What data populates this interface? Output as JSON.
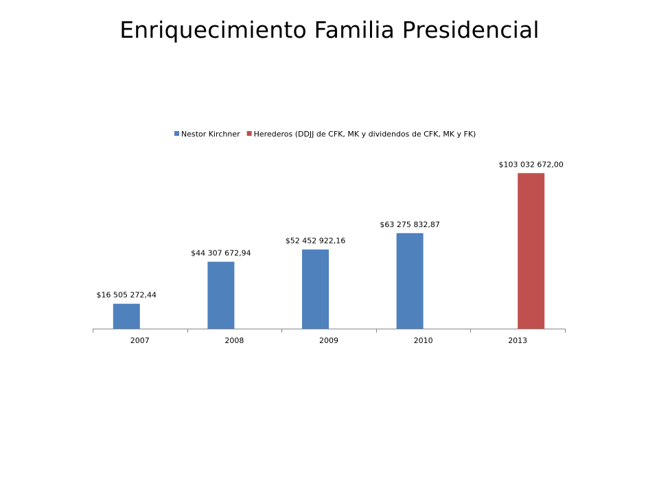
{
  "slide": {
    "title": "Enriquecimiento  Familia Presidencial"
  },
  "chart_data": {
    "type": "bar",
    "categories": [
      "2007",
      "2008",
      "2009",
      "2010",
      "2013"
    ],
    "series": [
      {
        "name": "Nestor Kirchner",
        "color": "#4F81BD",
        "values": [
          16505272.44,
          44307672.94,
          52452922.16,
          63275832.87,
          null
        ],
        "labels": [
          "$16 505 272,44",
          "$44 307 672,94",
          "$52 452 922,16",
          "$63 275 832,87",
          ""
        ]
      },
      {
        "name": "Herederos (DDJJ de CFK, MK y dividendos de CFK, MK y FK)",
        "color": "#C0504D",
        "values": [
          null,
          null,
          null,
          null,
          103032672.0
        ],
        "labels": [
          "",
          "",
          "",
          "",
          "$103 032 672,00"
        ]
      }
    ],
    "ylim": [
      0,
      115000000
    ],
    "grid": false,
    "legend_position": "top",
    "xlabel": "",
    "ylabel": ""
  }
}
